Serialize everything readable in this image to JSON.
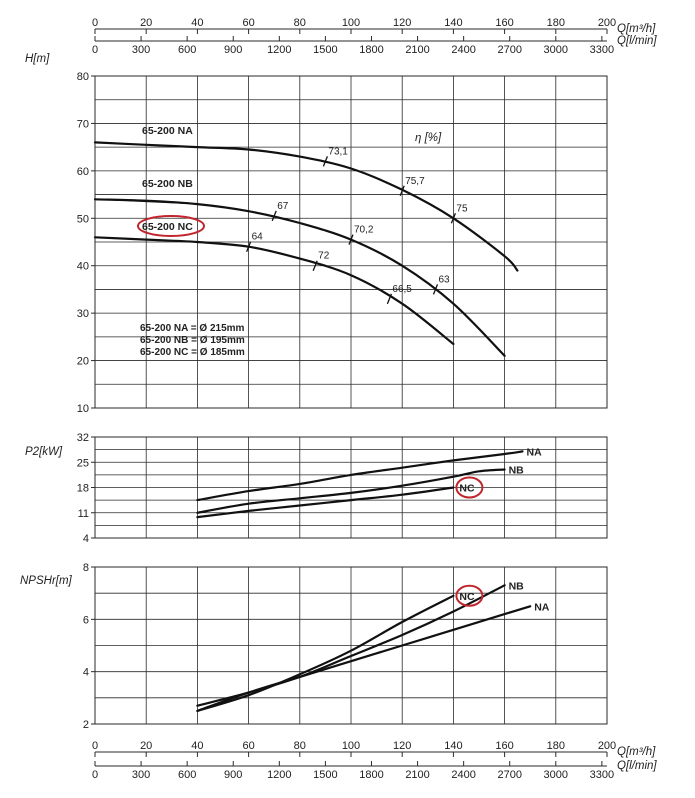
{
  "chart_data": {
    "type": "line",
    "title": "",
    "top_axes": {
      "flow_m3h": {
        "label": "Q[m³/h]",
        "ticks": [
          0,
          20,
          40,
          60,
          80,
          100,
          120,
          140,
          160,
          180,
          200
        ]
      },
      "flow_lmin": {
        "label": "Q[l/min]",
        "ticks": [
          0,
          300,
          600,
          900,
          1200,
          1500,
          1800,
          2100,
          2400,
          2700,
          3000,
          3300
        ]
      }
    },
    "bottom_axes": {
      "flow_m3h": {
        "label": "Q[m³/h]",
        "ticks": [
          0,
          20,
          40,
          60,
          80,
          100,
          120,
          140,
          160,
          180,
          200
        ]
      },
      "flow_lmin": {
        "label": "Q[l/min]",
        "ticks": [
          0,
          300,
          600,
          900,
          1200,
          1500,
          1800,
          2100,
          2400,
          2700,
          3000,
          3300
        ]
      }
    },
    "xlim": [
      0,
      200
    ],
    "panels": [
      {
        "id": "head",
        "ylabel": "H[m]",
        "ylim": [
          10,
          80
        ],
        "yticks": [
          10,
          20,
          30,
          40,
          50,
          60,
          70,
          80
        ],
        "grid": true,
        "series": [
          {
            "name": "65-200 NA",
            "x": [
              0,
              20,
              40,
              60,
              80,
              100,
              120,
              140,
              160,
              165
            ],
            "y": [
              66,
              65.5,
              65,
              64.5,
              63,
              60.5,
              56,
              50,
              42,
              39
            ]
          },
          {
            "name": "65-200 NB",
            "x": [
              0,
              20,
              40,
              60,
              80,
              100,
              120,
              140,
              160
            ],
            "y": [
              54,
              53.7,
              53,
              51.5,
              49,
              45.5,
              40,
              32,
              21
            ]
          },
          {
            "name": "65-200 NC",
            "x": [
              0,
              20,
              40,
              60,
              80,
              100,
              120,
              140
            ],
            "y": [
              46,
              45.5,
              45,
              44,
              41.5,
              38,
              32,
              23.5
            ]
          }
        ],
        "efficiency_title": "η [%]",
        "efficiency_marks": [
          {
            "label": "73,1",
            "x": 90,
            "y": 62
          },
          {
            "label": "75,7",
            "x": 120,
            "y": 55.8
          },
          {
            "label": "75",
            "x": 140,
            "y": 50
          },
          {
            "label": "67",
            "x": 70,
            "y": 50.5
          },
          {
            "label": "70,2",
            "x": 100,
            "y": 45.5
          },
          {
            "label": "63",
            "x": 133,
            "y": 35
          },
          {
            "label": "64",
            "x": 60,
            "y": 44
          },
          {
            "label": "72",
            "x": 86,
            "y": 40
          },
          {
            "label": "66,5",
            "x": 115,
            "y": 33
          }
        ],
        "diameters": [
          "65-200 NA = Ø 215mm",
          "65-200 NB = Ø 195mm",
          "65-200 NC = Ø 185mm"
        ],
        "highlighted_series": "65-200 NC"
      },
      {
        "id": "power",
        "ylabel": "P2[kW]",
        "ylim": [
          4,
          32
        ],
        "yticks": [
          4,
          11,
          18,
          25,
          32
        ],
        "grid": true,
        "series": [
          {
            "name": "NA",
            "x": [
              40,
              60,
              80,
              100,
              120,
              140,
              160,
              167
            ],
            "y": [
              14.5,
              17,
              19,
              21.5,
              23.5,
              25.5,
              27.3,
              28
            ]
          },
          {
            "name": "NB",
            "x": [
              40,
              60,
              80,
              100,
              120,
              140,
              150,
              160
            ],
            "y": [
              11,
              13.5,
              15,
              16.5,
              18.5,
              21,
              22.5,
              23
            ]
          },
          {
            "name": "NC",
            "x": [
              40,
              60,
              80,
              100,
              120,
              140
            ],
            "y": [
              9.8,
              11.5,
              13,
              14.5,
              16,
              18
            ]
          }
        ],
        "highlighted_series": "NC"
      },
      {
        "id": "npsh",
        "ylabel": "NPSHr[m]",
        "ylim": [
          2,
          8
        ],
        "yticks": [
          2,
          4,
          6,
          8
        ],
        "grid": true,
        "series": [
          {
            "name": "NA",
            "x": [
              40,
              60,
              80,
              100,
              120,
              140,
              160,
              170
            ],
            "y": [
              2.5,
              3.2,
              3.8,
              4.4,
              5,
              5.6,
              6.2,
              6.5
            ]
          },
          {
            "name": "NB",
            "x": [
              40,
              60,
              80,
              100,
              120,
              140,
              160
            ],
            "y": [
              2.7,
              3.2,
              3.8,
              4.6,
              5.4,
              6.3,
              7.3
            ]
          },
          {
            "name": "NC",
            "x": [
              40,
              60,
              80,
              100,
              120,
              140
            ],
            "y": [
              2.5,
              3.1,
              3.9,
              4.8,
              5.9,
              6.9
            ]
          }
        ],
        "highlighted_series": "NC"
      }
    ]
  },
  "colors": {
    "curve": "#111111",
    "grid": "#2a2a2a",
    "highlight": "#c0262d"
  }
}
